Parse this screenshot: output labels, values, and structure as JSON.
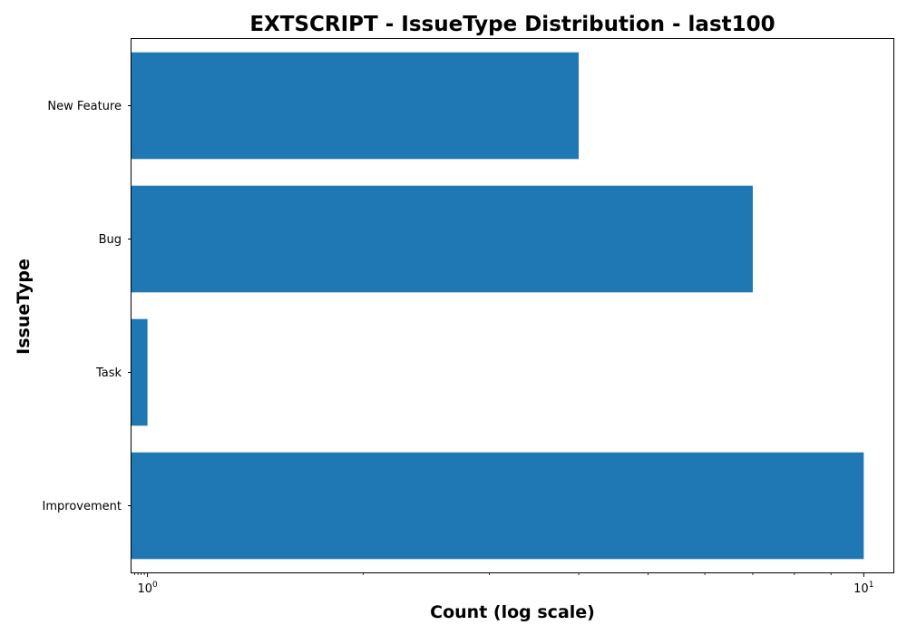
{
  "chart_data": {
    "type": "bar",
    "orientation": "horizontal",
    "title": "EXTSCRIPT - IssueType Distribution - last100",
    "xlabel": "Count (log scale)",
    "ylabel": "IssueType",
    "xscale": "log",
    "xlim": [
      0.95,
      11
    ],
    "xticks": [
      {
        "base": "10",
        "exp": "0",
        "value": 1
      },
      {
        "base": "10",
        "exp": "1",
        "value": 10
      }
    ],
    "categories": [
      "New Feature",
      "Bug",
      "Task",
      "Improvement"
    ],
    "values": [
      4,
      7,
      1,
      10
    ],
    "bar_color": "#1f77b4",
    "grid": false,
    "legend": "none"
  }
}
